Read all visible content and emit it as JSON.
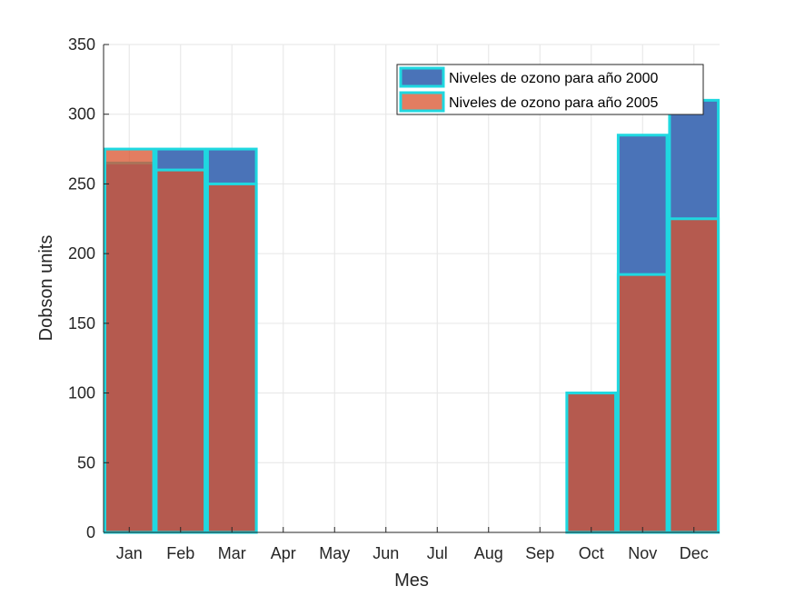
{
  "chart_data": {
    "type": "bar",
    "categories": [
      "Jan",
      "Feb",
      "Mar",
      "Apr",
      "May",
      "Jun",
      "Jul",
      "Aug",
      "Sep",
      "Oct",
      "Nov",
      "Dec"
    ],
    "series": [
      {
        "name": "Niveles de ozono para año 2000",
        "values": [
          265,
          275,
          275,
          0,
          0,
          0,
          0,
          0,
          0,
          100,
          285,
          310
        ],
        "color": "#4a73b8",
        "alpha": 1.0
      },
      {
        "name": "Niveles de ozono para año 2005",
        "values": [
          275,
          260,
          250,
          0,
          0,
          0,
          0,
          0,
          0,
          100,
          185,
          225
        ],
        "color": "#d9522c",
        "alpha": 0.75
      }
    ],
    "edge_color": "#1fd8e0",
    "xlabel": "Mes",
    "ylabel": "Dobson units",
    "ylim": [
      0,
      350
    ],
    "yticks": [
      0,
      50,
      100,
      150,
      200,
      250,
      300,
      350
    ],
    "grid": true,
    "legend_location": "top-right"
  }
}
